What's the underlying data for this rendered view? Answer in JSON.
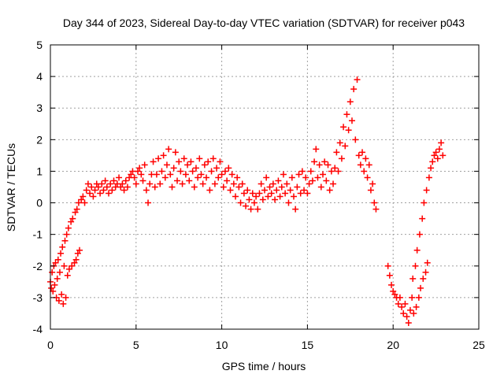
{
  "chart_data": {
    "type": "scatter",
    "title": "Day 344 of 2023, Sidereal Day-to-day VTEC variation (SDTVAR) for receiver p043",
    "xlabel": "GPS time / hours",
    "ylabel": "SDTVAR / TECUs",
    "xlim": [
      0,
      25
    ],
    "ylim": [
      -4,
      5
    ],
    "xticks": [
      0,
      5,
      10,
      15,
      20,
      25
    ],
    "yticks": [
      -4,
      -3,
      -2,
      -1,
      0,
      1,
      2,
      3,
      4,
      5
    ],
    "grid": true,
    "marker": "+",
    "marker_color": "#ff0000",
    "series": [
      {
        "name": "SDTVAR",
        "points": [
          [
            0.0,
            -2.5
          ],
          [
            0.05,
            -2.7
          ],
          [
            0.1,
            -2.2
          ],
          [
            0.15,
            -2.8
          ],
          [
            0.2,
            -2.0
          ],
          [
            0.25,
            -2.6
          ],
          [
            0.3,
            -1.9
          ],
          [
            0.35,
            -3.0
          ],
          [
            0.4,
            -2.4
          ],
          [
            0.45,
            -1.8
          ],
          [
            0.5,
            -3.1
          ],
          [
            0.55,
            -2.2
          ],
          [
            0.6,
            -1.6
          ],
          [
            0.65,
            -2.9
          ],
          [
            0.7,
            -1.4
          ],
          [
            0.75,
            -3.2
          ],
          [
            0.8,
            -2.0
          ],
          [
            0.85,
            -1.2
          ],
          [
            0.9,
            -3.0
          ],
          [
            0.95,
            -1.0
          ],
          [
            1.0,
            -2.3
          ],
          [
            1.05,
            -0.8
          ],
          [
            1.1,
            -2.1
          ],
          [
            1.2,
            -0.6
          ],
          [
            1.25,
            -2.0
          ],
          [
            1.3,
            -0.5
          ],
          [
            1.4,
            -1.9
          ],
          [
            1.45,
            -0.3
          ],
          [
            1.5,
            -1.8
          ],
          [
            1.55,
            -0.2
          ],
          [
            1.6,
            -1.6
          ],
          [
            1.65,
            0.0
          ],
          [
            1.7,
            -1.5
          ],
          [
            1.8,
            0.1
          ],
          [
            1.9,
            0.2
          ],
          [
            2.0,
            0.0
          ],
          [
            2.1,
            0.4
          ],
          [
            2.2,
            0.6
          ],
          [
            2.3,
            0.3
          ],
          [
            2.4,
            0.5
          ],
          [
            2.5,
            0.2
          ],
          [
            2.6,
            0.4
          ],
          [
            2.7,
            0.6
          ],
          [
            2.8,
            0.5
          ],
          [
            2.9,
            0.3
          ],
          [
            3.0,
            0.6
          ],
          [
            3.1,
            0.4
          ],
          [
            3.2,
            0.7
          ],
          [
            3.3,
            0.5
          ],
          [
            3.4,
            0.3
          ],
          [
            3.5,
            0.6
          ],
          [
            3.6,
            0.4
          ],
          [
            3.7,
            0.7
          ],
          [
            3.8,
            0.5
          ],
          [
            3.9,
            0.6
          ],
          [
            4.0,
            0.8
          ],
          [
            4.1,
            0.5
          ],
          [
            4.2,
            0.6
          ],
          [
            4.3,
            0.4
          ],
          [
            4.4,
            0.7
          ],
          [
            4.5,
            0.5
          ],
          [
            4.6,
            0.8
          ],
          [
            4.7,
            0.9
          ],
          [
            4.8,
            1.0
          ],
          [
            4.9,
            0.8
          ],
          [
            5.0,
            0.6
          ],
          [
            5.1,
            1.0
          ],
          [
            5.2,
            1.1
          ],
          [
            5.3,
            0.9
          ],
          [
            5.4,
            0.7
          ],
          [
            5.5,
            1.2
          ],
          [
            5.6,
            0.4
          ],
          [
            5.7,
            0.0
          ],
          [
            5.8,
            0.6
          ],
          [
            5.9,
            0.9
          ],
          [
            6.0,
            1.3
          ],
          [
            6.1,
            0.5
          ],
          [
            6.2,
            0.9
          ],
          [
            6.3,
            1.4
          ],
          [
            6.4,
            0.6
          ],
          [
            6.5,
            1.0
          ],
          [
            6.6,
            1.5
          ],
          [
            6.7,
            0.8
          ],
          [
            6.8,
            1.2
          ],
          [
            6.9,
            1.7
          ],
          [
            7.0,
            0.9
          ],
          [
            7.1,
            0.5
          ],
          [
            7.2,
            1.1
          ],
          [
            7.3,
            1.6
          ],
          [
            7.4,
            0.7
          ],
          [
            7.5,
            1.3
          ],
          [
            7.6,
            1.0
          ],
          [
            7.7,
            0.6
          ],
          [
            7.8,
            1.4
          ],
          [
            7.9,
            0.9
          ],
          [
            8.0,
            1.2
          ],
          [
            8.1,
            0.7
          ],
          [
            8.2,
            1.3
          ],
          [
            8.3,
            1.0
          ],
          [
            8.4,
            0.5
          ],
          [
            8.5,
            1.1
          ],
          [
            8.6,
            0.8
          ],
          [
            8.7,
            1.4
          ],
          [
            8.8,
            0.9
          ],
          [
            8.9,
            0.6
          ],
          [
            9.0,
            1.2
          ],
          [
            9.1,
            0.8
          ],
          [
            9.2,
            1.3
          ],
          [
            9.3,
            0.4
          ],
          [
            9.4,
            1.0
          ],
          [
            9.5,
            1.4
          ],
          [
            9.6,
            0.6
          ],
          [
            9.7,
            1.1
          ],
          [
            9.8,
            0.8
          ],
          [
            9.9,
            1.3
          ],
          [
            10.0,
            0.9
          ],
          [
            10.1,
            0.5
          ],
          [
            10.2,
            1.0
          ],
          [
            10.3,
            0.7
          ],
          [
            10.4,
            1.1
          ],
          [
            10.5,
            0.4
          ],
          [
            10.6,
            0.9
          ],
          [
            10.7,
            0.6
          ],
          [
            10.8,
            0.2
          ],
          [
            10.9,
            0.8
          ],
          [
            11.0,
            0.5
          ],
          [
            11.1,
            0.0
          ],
          [
            11.2,
            0.6
          ],
          [
            11.3,
            0.3
          ],
          [
            11.4,
            -0.1
          ],
          [
            11.5,
            0.4
          ],
          [
            11.6,
            0.1
          ],
          [
            11.7,
            -0.2
          ],
          [
            11.8,
            0.3
          ],
          [
            11.9,
            0.0
          ],
          [
            12.0,
            0.2
          ],
          [
            12.1,
            -0.2
          ],
          [
            12.2,
            0.3
          ],
          [
            12.3,
            0.6
          ],
          [
            12.4,
            0.1
          ],
          [
            12.5,
            0.4
          ],
          [
            12.6,
            0.8
          ],
          [
            12.7,
            0.2
          ],
          [
            12.8,
            0.5
          ],
          [
            12.9,
            0.3
          ],
          [
            13.0,
            0.6
          ],
          [
            13.1,
            0.1
          ],
          [
            13.2,
            0.4
          ],
          [
            13.3,
            0.7
          ],
          [
            13.4,
            0.2
          ],
          [
            13.5,
            0.5
          ],
          [
            13.6,
            0.9
          ],
          [
            13.7,
            0.3
          ],
          [
            13.8,
            0.6
          ],
          [
            13.9,
            0.0
          ],
          [
            14.0,
            0.4
          ],
          [
            14.1,
            0.8
          ],
          [
            14.2,
            0.2
          ],
          [
            14.3,
            -0.2
          ],
          [
            14.4,
            0.5
          ],
          [
            14.5,
            0.9
          ],
          [
            14.6,
            0.3
          ],
          [
            14.7,
            1.0
          ],
          [
            14.8,
            0.4
          ],
          [
            14.9,
            0.8
          ],
          [
            15.0,
            0.3
          ],
          [
            15.1,
            0.6
          ],
          [
            15.2,
            1.0
          ],
          [
            15.3,
            0.7
          ],
          [
            15.4,
            1.3
          ],
          [
            15.5,
            1.7
          ],
          [
            15.6,
            0.8
          ],
          [
            15.7,
            1.2
          ],
          [
            15.8,
            0.5
          ],
          [
            15.9,
            0.9
          ],
          [
            16.0,
            1.3
          ],
          [
            16.1,
            0.7
          ],
          [
            16.2,
            1.2
          ],
          [
            16.3,
            0.4
          ],
          [
            16.4,
            1.0
          ],
          [
            16.5,
            0.6
          ],
          [
            16.6,
            1.1
          ],
          [
            16.7,
            1.6
          ],
          [
            16.8,
            1.0
          ],
          [
            16.9,
            1.9
          ],
          [
            17.0,
            1.4
          ],
          [
            17.1,
            2.4
          ],
          [
            17.2,
            1.8
          ],
          [
            17.3,
            2.8
          ],
          [
            17.4,
            2.3
          ],
          [
            17.5,
            3.2
          ],
          [
            17.6,
            2.6
          ],
          [
            17.7,
            3.6
          ],
          [
            17.8,
            2.0
          ],
          [
            17.9,
            3.9
          ],
          [
            18.0,
            1.5
          ],
          [
            18.1,
            1.2
          ],
          [
            18.2,
            1.6
          ],
          [
            18.3,
            1.0
          ],
          [
            18.4,
            1.4
          ],
          [
            18.5,
            0.8
          ],
          [
            18.6,
            1.2
          ],
          [
            18.7,
            0.4
          ],
          [
            18.8,
            0.6
          ],
          [
            18.9,
            0.0
          ],
          [
            19.0,
            -0.2
          ],
          [
            19.7,
            -2.0
          ],
          [
            19.8,
            -2.3
          ],
          [
            19.9,
            -2.6
          ],
          [
            20.0,
            -2.8
          ],
          [
            20.1,
            -2.9
          ],
          [
            20.2,
            -3.0
          ],
          [
            20.3,
            -3.2
          ],
          [
            20.4,
            -3.0
          ],
          [
            20.5,
            -3.3
          ],
          [
            20.6,
            -3.5
          ],
          [
            20.7,
            -3.2
          ],
          [
            20.8,
            -3.6
          ],
          [
            20.9,
            -3.8
          ],
          [
            21.0,
            -3.4
          ],
          [
            21.1,
            -3.0
          ],
          [
            21.15,
            -2.4
          ],
          [
            21.2,
            -3.5
          ],
          [
            21.3,
            -2.0
          ],
          [
            21.35,
            -3.3
          ],
          [
            21.4,
            -1.5
          ],
          [
            21.5,
            -3.0
          ],
          [
            21.55,
            -1.0
          ],
          [
            21.6,
            -2.7
          ],
          [
            21.7,
            -0.5
          ],
          [
            21.75,
            -2.4
          ],
          [
            21.8,
            0.0
          ],
          [
            21.9,
            -2.2
          ],
          [
            21.95,
            0.4
          ],
          [
            22.0,
            -1.9
          ],
          [
            22.1,
            0.8
          ],
          [
            22.2,
            1.1
          ],
          [
            22.3,
            1.3
          ],
          [
            22.4,
            1.5
          ],
          [
            22.5,
            1.6
          ],
          [
            22.6,
            1.4
          ],
          [
            22.7,
            1.7
          ],
          [
            22.8,
            1.9
          ],
          [
            22.9,
            1.5
          ]
        ]
      }
    ]
  }
}
